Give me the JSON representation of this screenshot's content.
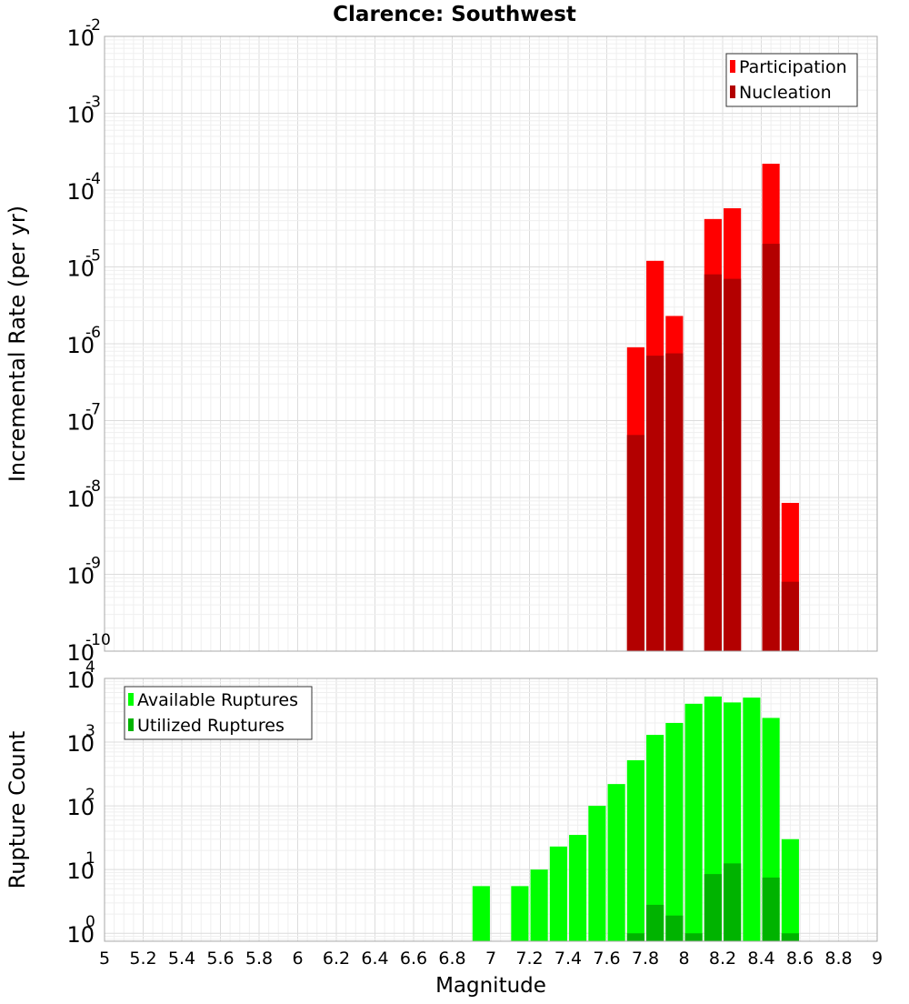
{
  "chart_data": [
    {
      "type": "bar",
      "title": "Clarence: Southwest",
      "xlabel": "",
      "ylabel": "Incremental Rate (per yr)",
      "yscale": "log",
      "ylim": [
        1e-10,
        0.01
      ],
      "xlim": [
        5,
        9
      ],
      "grid": true,
      "legend_position": "top-right",
      "y_ticks": [
        {
          "base": "10",
          "exp": "-10",
          "value": 1e-10
        },
        {
          "base": "10",
          "exp": "-9",
          "value": 1e-09
        },
        {
          "base": "10",
          "exp": "-8",
          "value": 1e-08
        },
        {
          "base": "10",
          "exp": "-7",
          "value": 1e-07
        },
        {
          "base": "10",
          "exp": "-6",
          "value": 1e-06
        },
        {
          "base": "10",
          "exp": "-5",
          "value": 1e-05
        },
        {
          "base": "10",
          "exp": "-4",
          "value": 0.0001
        },
        {
          "base": "10",
          "exp": "-3",
          "value": 0.001
        },
        {
          "base": "10",
          "exp": "-2",
          "value": 0.01
        }
      ],
      "series": [
        {
          "name": "Participation",
          "color": "#ff0000",
          "points": [
            {
              "x": 7.75,
              "y": 9e-07
            },
            {
              "x": 7.85,
              "y": 1.2e-05
            },
            {
              "x": 7.95,
              "y": 2.3e-06
            },
            {
              "x": 8.15,
              "y": 4.2e-05
            },
            {
              "x": 8.25,
              "y": 5.8e-05
            },
            {
              "x": 8.45,
              "y": 0.00022
            },
            {
              "x": 8.55,
              "y": 8.5e-09
            }
          ]
        },
        {
          "name": "Nucleation",
          "color": "#b30000",
          "points": [
            {
              "x": 7.75,
              "y": 6.5e-08
            },
            {
              "x": 7.85,
              "y": 7e-07
            },
            {
              "x": 7.95,
              "y": 7.5e-07
            },
            {
              "x": 8.15,
              "y": 8e-06
            },
            {
              "x": 8.25,
              "y": 7e-06
            },
            {
              "x": 8.45,
              "y": 2e-05
            },
            {
              "x": 8.55,
              "y": 8e-10
            }
          ]
        }
      ]
    },
    {
      "type": "bar",
      "title": "",
      "xlabel": "Magnitude",
      "ylabel": "Rupture Count",
      "yscale": "log",
      "ylim": [
        0.75,
        10000
      ],
      "xlim": [
        5,
        9
      ],
      "grid": true,
      "legend_position": "top-left",
      "y_ticks": [
        {
          "base": "10",
          "exp": "0",
          "value": 1
        },
        {
          "base": "10",
          "exp": "1",
          "value": 10
        },
        {
          "base": "10",
          "exp": "2",
          "value": 100
        },
        {
          "base": "10",
          "exp": "3",
          "value": 1000
        },
        {
          "base": "10",
          "exp": "4",
          "value": 10000
        }
      ],
      "x_ticks": [
        "5",
        "5.2",
        "5.4",
        "5.6",
        "5.8",
        "6",
        "6.2",
        "6.4",
        "6.6",
        "6.8",
        "7",
        "7.2",
        "7.4",
        "7.6",
        "7.8",
        "8",
        "8.2",
        "8.4",
        "8.6",
        "8.8",
        "9"
      ],
      "series": [
        {
          "name": "Available Ruptures",
          "color": "#00ff00",
          "points": [
            {
              "x": 6.95,
              "y": 5.5
            },
            {
              "x": 7.15,
              "y": 5.5
            },
            {
              "x": 7.25,
              "y": 10
            },
            {
              "x": 7.35,
              "y": 23
            },
            {
              "x": 7.45,
              "y": 35
            },
            {
              "x": 7.55,
              "y": 100
            },
            {
              "x": 7.65,
              "y": 220
            },
            {
              "x": 7.75,
              "y": 520
            },
            {
              "x": 7.85,
              "y": 1300
            },
            {
              "x": 7.95,
              "y": 2000
            },
            {
              "x": 8.05,
              "y": 4000
            },
            {
              "x": 8.15,
              "y": 5200
            },
            {
              "x": 8.25,
              "y": 4200
            },
            {
              "x": 8.35,
              "y": 5000
            },
            {
              "x": 8.45,
              "y": 2400
            },
            {
              "x": 8.55,
              "y": 30
            }
          ]
        },
        {
          "name": "Utilized Ruptures",
          "color": "#00b300",
          "points": [
            {
              "x": 7.75,
              "y": 1
            },
            {
              "x": 7.85,
              "y": 2.8
            },
            {
              "x": 7.95,
              "y": 1.9
            },
            {
              "x": 8.05,
              "y": 1
            },
            {
              "x": 8.15,
              "y": 8.5
            },
            {
              "x": 8.25,
              "y": 12.5
            },
            {
              "x": 8.45,
              "y": 7.5
            },
            {
              "x": 8.55,
              "y": 1
            }
          ]
        }
      ]
    }
  ]
}
